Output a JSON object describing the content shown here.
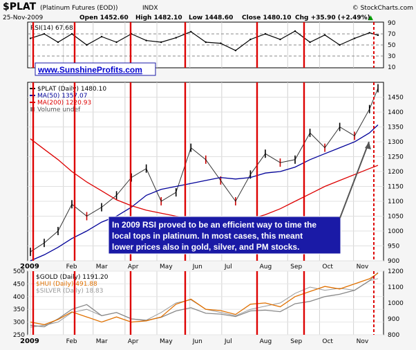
{
  "header": {
    "symbol": "$PLAT",
    "description": "(Platinum Futures (EOD))",
    "exchange": "INDX",
    "date": "25-Nov-2009",
    "open": "Open 1452.60",
    "high": "High 1482.10",
    "low": "Low 1448.60",
    "close": "Close 1480.10",
    "change": "Chg +35.90 (+2.49%)",
    "change_arrow": "▲",
    "credit": "© StockCharts.com"
  },
  "colors": {
    "price_bar": "#000000",
    "down_bar": "#cc0000",
    "ma50": "#000099",
    "ma200": "#dd0000",
    "vline": "#dd0000",
    "anno_box": "#1a1aa6",
    "gold": "#888888",
    "hui": "#e07000",
    "silver": "#999999"
  },
  "watermark_link": "www.SunshineProfits.com",
  "annotation": {
    "lines": [
      "In 2009 RSI proved to be an efficient way to time the",
      "local tops in platinum. In most cases, this meant",
      "lower prices also in gold, silver, and PM stocks."
    ]
  },
  "rsi_panel": {
    "label": "RSI(14) 67.68",
    "ticks": [
      "90",
      "70",
      "50",
      "30",
      "10"
    ]
  },
  "main_panel": {
    "legend": [
      {
        "text": "$PLAT (Daily) 1480.10",
        "color": "#000000",
        "marker": "bar"
      },
      {
        "text": "MA(50) 1357.07",
        "color": "#000099",
        "marker": "line"
      },
      {
        "text": "MA(200) 1220.93",
        "color": "#dd0000",
        "marker": "line"
      },
      {
        "text": "Volume undef",
        "color": "#555555",
        "marker": "box"
      }
    ],
    "ticks": [
      "1450",
      "1400",
      "1350",
      "1300",
      "1250",
      "1200",
      "1150",
      "1100",
      "1050",
      "1000",
      "950",
      "900"
    ]
  },
  "lower_panel": {
    "legend": [
      {
        "text": "$GOLD (Daily) 1191.20",
        "color": "#000000"
      },
      {
        "text": "$HUI (Daily) 491.88",
        "color": "#e07000"
      },
      {
        "text": "$SILVER (Daily) 18.83",
        "color": "#999999"
      }
    ],
    "left_ticks": [
      "500",
      "450",
      "400",
      "350",
      "300",
      "250"
    ],
    "right_ticks": [
      "1200",
      "1100",
      "1000",
      "900",
      "800"
    ]
  },
  "months": [
    "2009",
    "Feb",
    "Mar",
    "Apr",
    "May",
    "Jun",
    "Jul",
    "Aug",
    "Sep",
    "Oct",
    "Nov"
  ],
  "chart_data": [
    {
      "type": "line",
      "title": "RSI(14)",
      "ylim": [
        10,
        90
      ],
      "reference_lines": [
        70,
        50,
        30
      ],
      "x": [
        "2009-01-02",
        "2009-01-15",
        "2009-01-28",
        "2009-02-10",
        "2009-02-24",
        "2009-03-10",
        "2009-03-24",
        "2009-04-07",
        "2009-04-21",
        "2009-05-05",
        "2009-05-19",
        "2009-06-02",
        "2009-06-16",
        "2009-06-30",
        "2009-07-14",
        "2009-07-28",
        "2009-08-11",
        "2009-08-25",
        "2009-09-08",
        "2009-09-22",
        "2009-10-06",
        "2009-10-20",
        "2009-11-03",
        "2009-11-17",
        "2009-11-25"
      ],
      "series": [
        {
          "values": [
            62,
            70,
            55,
            70,
            50,
            65,
            55,
            70,
            58,
            55,
            63,
            74,
            55,
            53,
            40,
            60,
            70,
            60,
            75,
            55,
            68,
            50,
            62,
            72,
            67.68
          ]
        }
      ]
    },
    {
      "type": "line",
      "title": "Platinum Futures (EOD)",
      "ylim": [
        900,
        1500
      ],
      "x": [
        "2009-01-02",
        "2009-01-15",
        "2009-01-28",
        "2009-02-10",
        "2009-02-24",
        "2009-03-10",
        "2009-03-24",
        "2009-04-07",
        "2009-04-21",
        "2009-05-05",
        "2009-05-19",
        "2009-06-02",
        "2009-06-16",
        "2009-06-30",
        "2009-07-14",
        "2009-07-28",
        "2009-08-11",
        "2009-08-25",
        "2009-09-08",
        "2009-09-22",
        "2009-10-06",
        "2009-10-20",
        "2009-11-03",
        "2009-11-17",
        "2009-11-25"
      ],
      "series": [
        {
          "name": "$PLAT (Daily) 1480.10",
          "values": [
            930,
            960,
            1000,
            1090,
            1050,
            1080,
            1120,
            1180,
            1210,
            1100,
            1130,
            1280,
            1240,
            1170,
            1100,
            1190,
            1260,
            1230,
            1240,
            1330,
            1280,
            1350,
            1320,
            1410,
            1480
          ]
        },
        {
          "name": "MA(50) 1357.07",
          "values": [
            900,
            920,
            945,
            975,
            1000,
            1030,
            1050,
            1080,
            1120,
            1140,
            1150,
            1160,
            1170,
            1180,
            1175,
            1180,
            1195,
            1200,
            1215,
            1240,
            1260,
            1280,
            1300,
            1330,
            1357.07
          ]
        },
        {
          "name": "MA(200) 1220.93",
          "values": [
            1310,
            1275,
            1240,
            1200,
            1165,
            1135,
            1105,
            1085,
            1070,
            1060,
            1050,
            1043,
            1040,
            1035,
            1036,
            1040,
            1055,
            1075,
            1100,
            1125,
            1150,
            1170,
            1190,
            1210,
            1220.93
          ]
        }
      ]
    },
    {
      "type": "line",
      "title": "$GOLD / $HUI / $SILVER",
      "ylim": [
        250,
        500
      ],
      "y2lim": [
        800,
        1200
      ],
      "x": [
        "2009-01-02",
        "2009-01-15",
        "2009-01-28",
        "2009-02-10",
        "2009-02-24",
        "2009-03-10",
        "2009-03-24",
        "2009-04-07",
        "2009-04-21",
        "2009-05-05",
        "2009-05-19",
        "2009-06-02",
        "2009-06-16",
        "2009-06-30",
        "2009-07-14",
        "2009-07-28",
        "2009-08-11",
        "2009-08-25",
        "2009-09-08",
        "2009-09-22",
        "2009-10-06",
        "2009-10-20",
        "2009-11-03",
        "2009-11-17",
        "2009-11-25"
      ],
      "series": [
        {
          "name": "$GOLD (Daily) 1191.20",
          "values": [
            860,
            850,
            900,
            960,
            990,
            920,
            940,
            900,
            890,
            910,
            950,
            970,
            935,
            930,
            915,
            950,
            955,
            945,
            995,
            1010,
            1040,
            1055,
            1080,
            1140,
            1191.2
          ]
        },
        {
          "name": "$HUI (Daily) 491.88",
          "values": [
            300,
            290,
            310,
            340,
            320,
            300,
            320,
            300,
            305,
            320,
            370,
            390,
            350,
            345,
            330,
            370,
            375,
            360,
            400,
            420,
            440,
            430,
            450,
            470,
            491.88
          ]
        },
        {
          "name": "$SILVER (Daily) 18.83",
          "values": [
            11.2,
            11.5,
            12.0,
            13.5,
            14.0,
            13.0,
            13.5,
            12.5,
            12.3,
            13.5,
            15.0,
            15.5,
            14.0,
            13.5,
            13.0,
            14.0,
            14.5,
            15.0,
            16.5,
            17.5,
            17.0,
            17.3,
            17.0,
            18.5,
            18.83
          ]
        }
      ]
    }
  ]
}
